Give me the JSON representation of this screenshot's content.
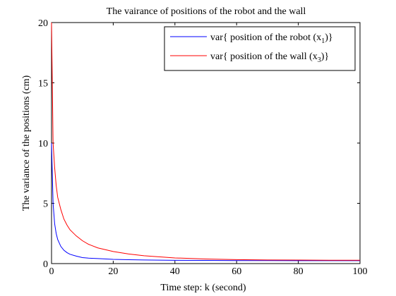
{
  "chart_data": {
    "type": "line",
    "title": "The vairance of positions of the robot and the wall",
    "xlabel": "Time step: k (second)",
    "ylabel": "The variance of the positions (cm)",
    "xlim": [
      0,
      100
    ],
    "ylim": [
      0,
      20
    ],
    "xticks": [
      0,
      20,
      40,
      60,
      80,
      100
    ],
    "yticks": [
      0,
      5,
      10,
      15,
      20
    ],
    "grid": false,
    "legend_position": "top-right",
    "legend": [
      {
        "label": "var{ position of the robot (x",
        "sub": "1",
        "suffix": ")}",
        "color": "#0000ff"
      },
      {
        "label": "var{ position of the wall (x",
        "sub": "3",
        "suffix": ")}",
        "color": "#ff0000"
      }
    ],
    "series": [
      {
        "name": "var{ position of the robot (x1)}",
        "color": "#0000ff",
        "x": [
          0,
          0.5,
          1,
          1.5,
          2,
          3,
          4,
          5,
          6,
          8,
          10,
          12,
          15,
          20,
          25,
          30,
          40,
          50,
          60,
          70,
          80,
          90,
          100
        ],
        "y": [
          10,
          5.0,
          3.33,
          2.5,
          2.0,
          1.43,
          1.11,
          0.91,
          0.77,
          0.62,
          0.5,
          0.45,
          0.42,
          0.35,
          0.32,
          0.3,
          0.27,
          0.26,
          0.25,
          0.25,
          0.24,
          0.24,
          0.24
        ]
      },
      {
        "name": "var{ position of the wall (x3)}",
        "color": "#ff0000",
        "x": [
          0,
          0.5,
          1,
          1.5,
          2,
          3,
          4,
          5,
          6,
          8,
          10,
          12,
          15,
          20,
          25,
          30,
          40,
          50,
          60,
          70,
          80,
          90,
          100
        ],
        "y": [
          20,
          10.0,
          8.0,
          6.5,
          5.5,
          4.5,
          3.7,
          3.2,
          2.8,
          2.3,
          1.9,
          1.6,
          1.3,
          1.0,
          0.8,
          0.65,
          0.47,
          0.38,
          0.33,
          0.3,
          0.29,
          0.28,
          0.28
        ]
      }
    ]
  }
}
